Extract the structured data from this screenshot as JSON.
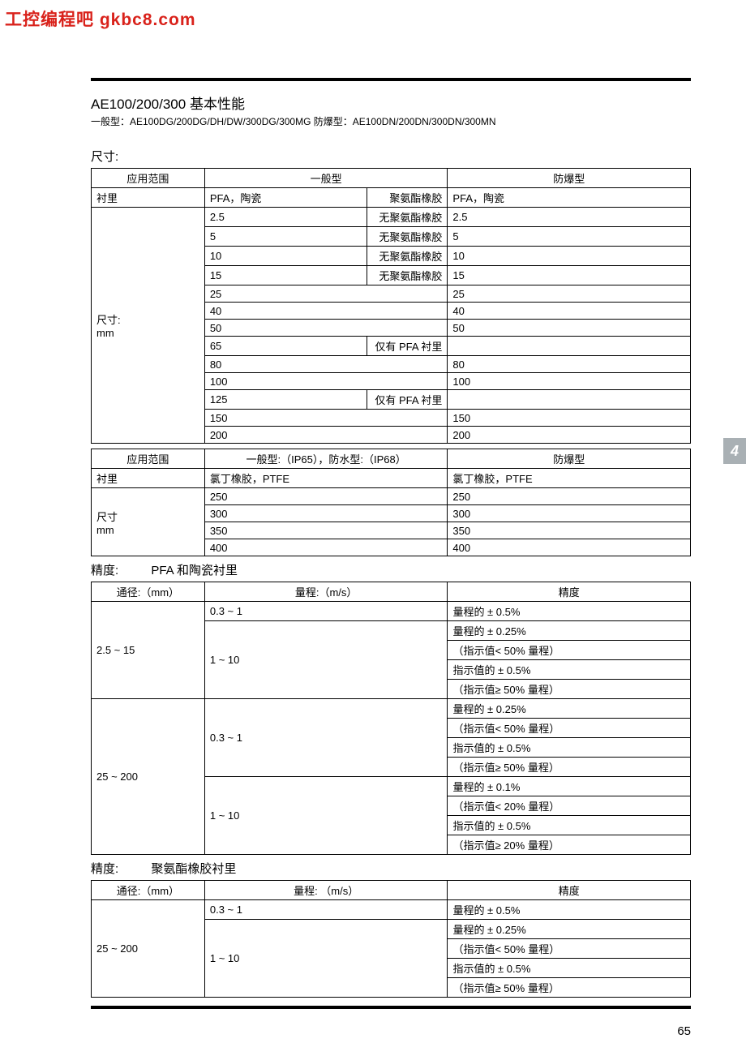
{
  "watermark": "工控编程吧  gkbc8.com",
  "side_tab": "4",
  "page_number": "65",
  "title": {
    "main": "AE100/200/300 基本性能",
    "sub": "一般型：AE100DG/200DG/DH/DW/300DG/300MG   防爆型：AE100DN/200DN/300DN/300MN"
  },
  "section_size": {
    "label": "尺寸:",
    "table1": {
      "headers": [
        "应用范围",
        "一般型",
        "防爆型"
      ],
      "lining_label": "衬里",
      "lining_gen_a": "PFA，陶瓷",
      "lining_gen_b": "聚氨酯橡胶",
      "lining_exp": "PFA，陶瓷",
      "size_label_1": "尺寸:",
      "size_label_2": "mm",
      "rows": [
        {
          "g1": "2.5",
          "g2": "无聚氨酯橡胶",
          "e": "2.5"
        },
        {
          "g1": "5",
          "g2": "无聚氨酯橡胶",
          "e": "5"
        },
        {
          "g1": "10",
          "g2": "无聚氨酯橡胶",
          "e": "10"
        },
        {
          "g1": "15",
          "g2": "无聚氨酯橡胶",
          "e": "15"
        },
        {
          "g1": "25",
          "g2": "",
          "e": "25"
        },
        {
          "g1": "40",
          "g2": "",
          "e": "40"
        },
        {
          "g1": "50",
          "g2": "",
          "e": "50"
        },
        {
          "g1": "65",
          "g2": "仅有 PFA 衬里",
          "e": ""
        },
        {
          "g1": "80",
          "g2": "",
          "e": "80"
        },
        {
          "g1": "100",
          "g2": "",
          "e": "100"
        },
        {
          "g1": "125",
          "g2": "仅有 PFA 衬里",
          "e": ""
        },
        {
          "g1": "150",
          "g2": "",
          "e": "150"
        },
        {
          "g1": "200",
          "g2": "",
          "e": "200"
        }
      ]
    },
    "table2": {
      "headers": [
        "应用范围",
        "一般型:（IP65），防水型:（IP68）",
        "防爆型"
      ],
      "lining_label": "衬里",
      "lining_gen": "氯丁橡胶，PTFE",
      "lining_exp": "氯丁橡胶，PTFE",
      "size_label_1": "尺寸",
      "size_label_2": "mm",
      "rows": [
        {
          "g": "250",
          "e": "250"
        },
        {
          "g": "300",
          "e": "300"
        },
        {
          "g": "350",
          "e": "350"
        },
        {
          "g": "400",
          "e": "400"
        }
      ]
    }
  },
  "section_acc1": {
    "label": "精度:",
    "sub": "PFA 和陶瓷衬里",
    "headers": [
      "通径:（mm）",
      "量程:（m/s）",
      "精度"
    ],
    "groups": [
      {
        "dia": "2.5 ~ 15",
        "ranges": [
          {
            "r": "0.3 ~ 1",
            "rows": [
              "量程的 ± 0.5%"
            ]
          },
          {
            "r": "1 ~ 10",
            "rows": [
              "量程的 ± 0.25%",
              "（指示值< 50% 量程）",
              "指示值的 ± 0.5%",
              "（指示值≥ 50% 量程）"
            ]
          }
        ]
      },
      {
        "dia": "25 ~ 200",
        "ranges": [
          {
            "r": "0.3 ~ 1",
            "rows": [
              "量程的 ± 0.25%",
              "（指示值< 50% 量程）",
              "指示值的 ± 0.5%",
              "（指示值≥ 50% 量程）"
            ]
          },
          {
            "r": "1 ~ 10",
            "rows": [
              "量程的 ± 0.1%",
              "（指示值< 20% 量程）",
              "指示值的 ± 0.5%",
              "（指示值≥ 20% 量程）"
            ]
          }
        ]
      }
    ]
  },
  "section_acc2": {
    "label": "精度:",
    "sub": "聚氨酯橡胶衬里",
    "headers": [
      "通径:（mm）",
      "量程:   （m/s）",
      "精度"
    ],
    "groups": [
      {
        "dia": "25 ~ 200",
        "ranges": [
          {
            "r": "0.3 ~ 1",
            "rows": [
              "量程的 ± 0.5%"
            ]
          },
          {
            "r": "1 ~ 10",
            "rows": [
              "量程的 ± 0.25%",
              "（指示值< 50% 量程）",
              "指示值的 ± 0.5%",
              "（指示值≥ 50% 量程）"
            ]
          }
        ]
      }
    ]
  }
}
